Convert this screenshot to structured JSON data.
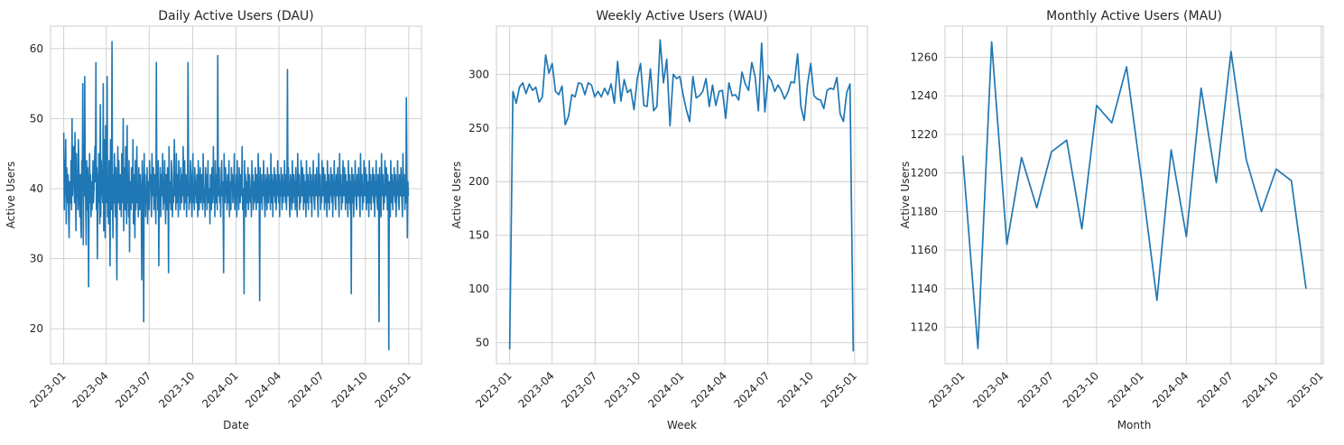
{
  "chart_data": [
    {
      "type": "line",
      "title": "Daily Active Users (DAU)",
      "xlabel": "Date",
      "ylabel": "Active Users",
      "xlim": [
        "2022-12-04",
        "2025-01-28"
      ],
      "ylim": [
        15,
        63.2
      ],
      "x_ticks": [
        "2023-01",
        "2023-04",
        "2023-07",
        "2023-10",
        "2024-01",
        "2024-04",
        "2024-07",
        "2024-10",
        "2025-01"
      ],
      "y_ticks": [
        20,
        30,
        40,
        50,
        60
      ],
      "grid": true,
      "color": "#1f77b4",
      "x_start": "2023-01-01",
      "x_end": "2024-12-31",
      "values": [
        48,
        37,
        44,
        39,
        47,
        35,
        43,
        41,
        38,
        42,
        36,
        33,
        41,
        40,
        38,
        44,
        37,
        50,
        39,
        42,
        46,
        43,
        38,
        48,
        40,
        34,
        45,
        39,
        41,
        37,
        47,
        43,
        38,
        36,
        42,
        35,
        33,
        44,
        40,
        55,
        32,
        46,
        39,
        56,
        41,
        38,
        32,
        44,
        37,
        43,
        40,
        26,
        39,
        45,
        38,
        42,
        36,
        41,
        37,
        39,
        44,
        38,
        40,
        43,
        46,
        41,
        58,
        37,
        43,
        30,
        42,
        38,
        45,
        40,
        35,
        52,
        36,
        44,
        39,
        41,
        38,
        55,
        34,
        47,
        40,
        33,
        49,
        38,
        42,
        56,
        36,
        40,
        35,
        44,
        38,
        29,
        47,
        41,
        37,
        61,
        39,
        33,
        42,
        38,
        45,
        40,
        36,
        43,
        35,
        27,
        41,
        46,
        38,
        44,
        39,
        37,
        42,
        40,
        36,
        45,
        38,
        41,
        50,
        34,
        43,
        39,
        37,
        46,
        40,
        35,
        49,
        38,
        42,
        36,
        44,
        31,
        41,
        39,
        37,
        43,
        40,
        38,
        47,
        35,
        42,
        39,
        33,
        44,
        37,
        41,
        46,
        38,
        40,
        36,
        43,
        39,
        37,
        42,
        40,
        38,
        27,
        44,
        41,
        37,
        21,
        45,
        39,
        42,
        36,
        40,
        38,
        43,
        35,
        41,
        39,
        37,
        44,
        40,
        42,
        38,
        36,
        45,
        41,
        39,
        43,
        37,
        40,
        42,
        38,
        35,
        58,
        39,
        41,
        37,
        44,
        29,
        40,
        38,
        43,
        36,
        42,
        39,
        41,
        45,
        37,
        40,
        38,
        44,
        39,
        35,
        42,
        41,
        37,
        43,
        40,
        28,
        46,
        38,
        41,
        39,
        37,
        44,
        42,
        36,
        40,
        38,
        43,
        47,
        39,
        41,
        37,
        45,
        38,
        40,
        42,
        36,
        44,
        39,
        41,
        37,
        43,
        40,
        38,
        42,
        39,
        46,
        41,
        37,
        44,
        40,
        38,
        42,
        36,
        41,
        39,
        58,
        43,
        37,
        40,
        38,
        44,
        42,
        39,
        36,
        41,
        45,
        38,
        40,
        37,
        43,
        39,
        41,
        38,
        42,
        40,
        36,
        44,
        39,
        37,
        41,
        43,
        38,
        40,
        42,
        39,
        37,
        45,
        41,
        38,
        40,
        36,
        43,
        39,
        42,
        37,
        41,
        44,
        38,
        40,
        39,
        35,
        42,
        41,
        37,
        43,
        40,
        38,
        46,
        39,
        41,
        36,
        44,
        40,
        38,
        42,
        37,
        59,
        41,
        39,
        43,
        38,
        40,
        36,
        42,
        44,
        39,
        41,
        37,
        28,
        45,
        40,
        38,
        43,
        39,
        41,
        37,
        42,
        40,
        38,
        44,
        36,
        41,
        39,
        37,
        43,
        40,
        42,
        38,
        39,
        41,
        45,
        37,
        40,
        38,
        42,
        36,
        44,
        39,
        41,
        37,
        43,
        40,
        38,
        42,
        39,
        41,
        46,
        37,
        40,
        38,
        25,
        44,
        39,
        42,
        36,
        41,
        38,
        40,
        43,
        37,
        39,
        42,
        41,
        38,
        40,
        36,
        44,
        39,
        42,
        37,
        41,
        38,
        40,
        43,
        39,
        37,
        42,
        40,
        38,
        45,
        41,
        39,
        24,
        43,
        40,
        38,
        42,
        37,
        41,
        39,
        44,
        40,
        38,
        36,
        42,
        41,
        39,
        37,
        43,
        40,
        38,
        42,
        39,
        41,
        37,
        45,
        40,
        38,
        42,
        36,
        41,
        39,
        43,
        40,
        38,
        42,
        37,
        41,
        39,
        44,
        40,
        38,
        42,
        36,
        41,
        39,
        43,
        40,
        37,
        42,
        38,
        41,
        39,
        44,
        40,
        38,
        42,
        37,
        41,
        57,
        39,
        43,
        40,
        38,
        36,
        42,
        41,
        39,
        37,
        44,
        40,
        38,
        42,
        39,
        41,
        37,
        43,
        40,
        38,
        36,
        45,
        41,
        39,
        42,
        37,
        40,
        38,
        44,
        41,
        39,
        43,
        40,
        37,
        42,
        38,
        41,
        39,
        36,
        44,
        40,
        38,
        42,
        37,
        41,
        39,
        43,
        40,
        38,
        42,
        36,
        41,
        39,
        44,
        40,
        38,
        37,
        42,
        41,
        39,
        43,
        40,
        38,
        36,
        45,
        41,
        39,
        42,
        37,
        40,
        38,
        44,
        41,
        39,
        43,
        40,
        37,
        42,
        38,
        41,
        39,
        36,
        44,
        40,
        38,
        42,
        37,
        41,
        39,
        43,
        40,
        38,
        42,
        36,
        41,
        39,
        44,
        40,
        38,
        37,
        42,
        41,
        39,
        43,
        40,
        38,
        36,
        45,
        41,
        39,
        42,
        37,
        40,
        38,
        44,
        41,
        39,
        43,
        40,
        37,
        42,
        38,
        41,
        39,
        36,
        44,
        40,
        38,
        42,
        37,
        41,
        25,
        43,
        40,
        38,
        42,
        36,
        41,
        39,
        44,
        40,
        38,
        37,
        42,
        41,
        39,
        43,
        40,
        38,
        36,
        45,
        41,
        39,
        42,
        37,
        40,
        38,
        44,
        41,
        39,
        43,
        40,
        37,
        42,
        38,
        41,
        39,
        36,
        44,
        40,
        38,
        42,
        37,
        41,
        39,
        43,
        40,
        38,
        42,
        36,
        41,
        39,
        44,
        40,
        38,
        37,
        42,
        41,
        21,
        43,
        40,
        38,
        36,
        45,
        41,
        39,
        42,
        37,
        40,
        38,
        44,
        41,
        39,
        43,
        40,
        37,
        42,
        38,
        17,
        41,
        39,
        36,
        44,
        40,
        38,
        42,
        37,
        41,
        39,
        43,
        40,
        38,
        42,
        36,
        41,
        39,
        44,
        40,
        38,
        37,
        42,
        41,
        39,
        43,
        40,
        38,
        36,
        45,
        41,
        39,
        42,
        37,
        40,
        38,
        53,
        44,
        33,
        41,
        39
      ]
    },
    {
      "type": "line",
      "title": "Weekly Active Users (WAU)",
      "xlabel": "Week",
      "ylabel": "Active Users",
      "xlim": [
        "2022-12-04",
        "2025-01-28"
      ],
      "ylim": [
        30.4,
        344.8
      ],
      "x_ticks": [
        "2023-01",
        "2023-04",
        "2023-07",
        "2023-10",
        "2024-01",
        "2024-04",
        "2024-07",
        "2024-10",
        "2025-01"
      ],
      "y_ticks": [
        50,
        100,
        150,
        200,
        250,
        300
      ],
      "grid": true,
      "color": "#1f77b4",
      "x_start": "2023-01-01",
      "x_end": "2024-12-29",
      "values": [
        44,
        284,
        273,
        288,
        292,
        282,
        291,
        285,
        288,
        274,
        279,
        318,
        301,
        310,
        284,
        281,
        289,
        253,
        261,
        281,
        279,
        292,
        291,
        281,
        292,
        290,
        279,
        284,
        279,
        287,
        281,
        291,
        273,
        312,
        275,
        295,
        283,
        286,
        267,
        296,
        310,
        271,
        270,
        305,
        266,
        270,
        332,
        292,
        314,
        252,
        300,
        296,
        298,
        281,
        267,
        256,
        298,
        278,
        280,
        284,
        296,
        270,
        290,
        271,
        284,
        285,
        259,
        292,
        280,
        281,
        276,
        302,
        291,
        285,
        311,
        298,
        266,
        329,
        265,
        299,
        294,
        284,
        290,
        285,
        277,
        283,
        293,
        292,
        319,
        270,
        257,
        290,
        310,
        280,
        277,
        276,
        268,
        285,
        287,
        286,
        297,
        263,
        256,
        283,
        291,
        42
      ]
    },
    {
      "type": "line",
      "title": "Monthly Active Users (MAU)",
      "xlabel": "Month",
      "ylabel": "Active Users",
      "xlim": [
        "2022-11-26",
        "2025-01-05"
      ],
      "ylim": [
        1101.1,
        1276.1
      ],
      "x_ticks": [
        "2023-01",
        "2023-04",
        "2023-07",
        "2023-10",
        "2024-01",
        "2024-04",
        "2024-07",
        "2024-10",
        "2025-01"
      ],
      "y_ticks": [
        1120,
        1140,
        1160,
        1180,
        1200,
        1220,
        1240,
        1260
      ],
      "grid": true,
      "color": "#1f77b4",
      "x": [
        "2023-01",
        "2023-02",
        "2023-03",
        "2023-04",
        "2023-05",
        "2023-06",
        "2023-07",
        "2023-08",
        "2023-09",
        "2023-10",
        "2023-11",
        "2023-12",
        "2024-01",
        "2024-02",
        "2024-03",
        "2024-04",
        "2024-05",
        "2024-06",
        "2024-07",
        "2024-08",
        "2024-09",
        "2024-10",
        "2024-11",
        "2024-12"
      ],
      "values": [
        1209,
        1109,
        1268,
        1163,
        1208,
        1182,
        1211,
        1217,
        1171,
        1235,
        1226,
        1255,
        1196,
        1134,
        1212,
        1167,
        1244,
        1195,
        1263,
        1207,
        1180,
        1202,
        1196,
        1140
      ]
    }
  ]
}
